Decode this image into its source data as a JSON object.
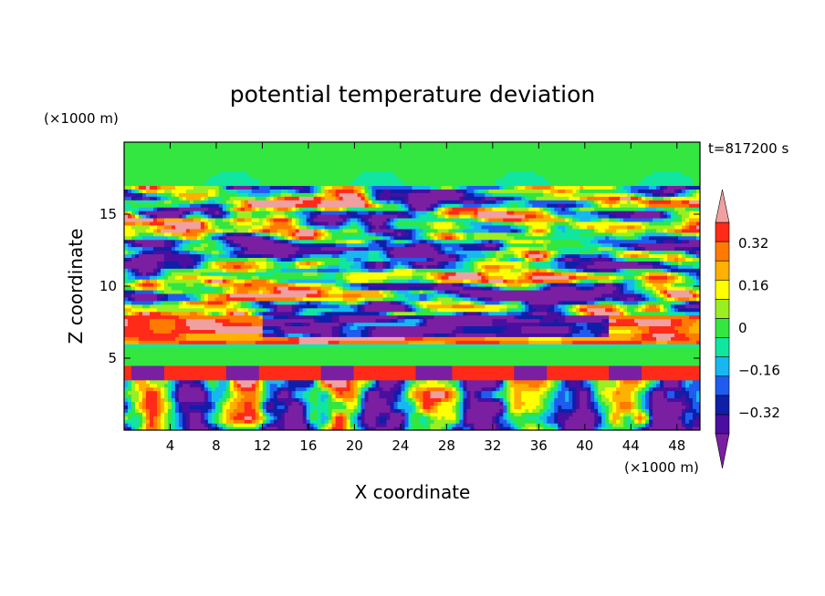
{
  "chart_data": {
    "type": "heatmap",
    "title": "potential temperature deviation",
    "xlabel": "X coordinate",
    "ylabel": "Z coordinate",
    "x_unit": "(×1000 m)",
    "y_unit": "(×1000 m)",
    "time_label": "t=817200 s",
    "xlim": [
      0,
      50
    ],
    "ylim": [
      0,
      20
    ],
    "x_ticks": [
      4,
      8,
      12,
      16,
      20,
      24,
      28,
      32,
      36,
      40,
      44,
      48
    ],
    "y_ticks": [
      5,
      10,
      15
    ],
    "colorbar": {
      "levels": [
        -0.48,
        -0.4,
        -0.32,
        -0.24,
        -0.16,
        -0.08,
        0,
        0.08,
        0.16,
        0.24,
        0.32,
        0.4,
        0.48
      ],
      "colors": [
        "#7a1fa2",
        "#4a0fa0",
        "#0f1fa8",
        "#1e5cf0",
        "#17b8f0",
        "#10e6a0",
        "#33e640",
        "#9aee22",
        "#ffff00",
        "#ffb000",
        "#ff7a00",
        "#ff2a18",
        "#f0a0a0"
      ],
      "tick_labels": [
        "0.32",
        "0.16",
        "0",
        "−0.16",
        "−0.32"
      ],
      "tick_values": [
        0.32,
        0.16,
        0,
        -0.16,
        -0.32
      ]
    }
  }
}
